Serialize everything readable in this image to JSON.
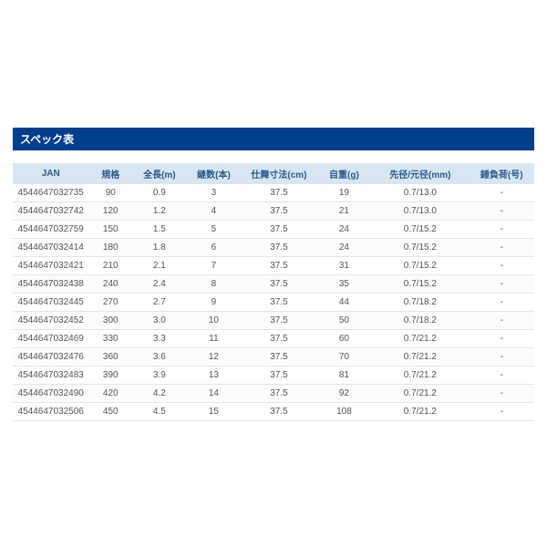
{
  "title": "スペック表",
  "title_bar_color": "#003e8e",
  "header_bg": "#d8e6f2",
  "header_fg": "#2a5a8a",
  "row_border": "#e5e5e5",
  "columns": [
    {
      "key": "jan",
      "label": "JAN"
    },
    {
      "key": "spec",
      "label": "規格"
    },
    {
      "key": "length",
      "label": "全長(m)"
    },
    {
      "key": "sections",
      "label": "継数(本)"
    },
    {
      "key": "closed",
      "label": "仕舞寸法(cm)"
    },
    {
      "key": "weight",
      "label": "自重(g)"
    },
    {
      "key": "diameter",
      "label": "先径/元径(mm)"
    },
    {
      "key": "load",
      "label": "錘負荷(号)"
    }
  ],
  "rows": [
    {
      "jan": "4544647032735",
      "spec": "90",
      "length": "0.9",
      "sections": "3",
      "closed": "37.5",
      "weight": "19",
      "diameter": "0.7/13.0",
      "load": "-"
    },
    {
      "jan": "4544647032742",
      "spec": "120",
      "length": "1.2",
      "sections": "4",
      "closed": "37.5",
      "weight": "21",
      "diameter": "0.7/13.0",
      "load": "-"
    },
    {
      "jan": "4544647032759",
      "spec": "150",
      "length": "1.5",
      "sections": "5",
      "closed": "37.5",
      "weight": "24",
      "diameter": "0.7/15.2",
      "load": "-"
    },
    {
      "jan": "4544647032414",
      "spec": "180",
      "length": "1.8",
      "sections": "6",
      "closed": "37.5",
      "weight": "24",
      "diameter": "0.7/15.2",
      "load": "-"
    },
    {
      "jan": "4544647032421",
      "spec": "210",
      "length": "2.1",
      "sections": "7",
      "closed": "37.5",
      "weight": "31",
      "diameter": "0.7/15.2",
      "load": "-"
    },
    {
      "jan": "4544647032438",
      "spec": "240",
      "length": "2.4",
      "sections": "8",
      "closed": "37.5",
      "weight": "35",
      "diameter": "0.7/15.2",
      "load": "-"
    },
    {
      "jan": "4544647032445",
      "spec": "270",
      "length": "2.7",
      "sections": "9",
      "closed": "37.5",
      "weight": "44",
      "diameter": "0.7/18.2",
      "load": "-"
    },
    {
      "jan": "4544647032452",
      "spec": "300",
      "length": "3.0",
      "sections": "10",
      "closed": "37.5",
      "weight": "50",
      "diameter": "0.7/18.2",
      "load": "-"
    },
    {
      "jan": "4544647032469",
      "spec": "330",
      "length": "3.3",
      "sections": "11",
      "closed": "37.5",
      "weight": "60",
      "diameter": "0.7/21.2",
      "load": "-"
    },
    {
      "jan": "4544647032476",
      "spec": "360",
      "length": "3.6",
      "sections": "12",
      "closed": "37.5",
      "weight": "70",
      "diameter": "0.7/21.2",
      "load": "-"
    },
    {
      "jan": "4544647032483",
      "spec": "390",
      "length": "3.9",
      "sections": "13",
      "closed": "37.5",
      "weight": "81",
      "diameter": "0.7/21.2",
      "load": "-"
    },
    {
      "jan": "4544647032490",
      "spec": "420",
      "length": "4.2",
      "sections": "14",
      "closed": "37.5",
      "weight": "92",
      "diameter": "0.7/21.2",
      "load": "-"
    },
    {
      "jan": "4544647032506",
      "spec": "450",
      "length": "4.5",
      "sections": "15",
      "closed": "37.5",
      "weight": "108",
      "diameter": "0.7/21.2",
      "load": "-"
    }
  ]
}
